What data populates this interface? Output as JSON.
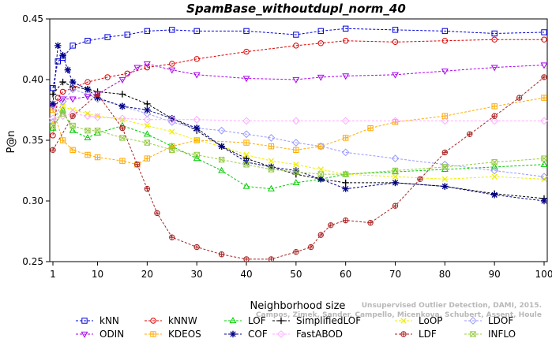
{
  "chart_data": {
    "type": "line",
    "title": "SpamBase_withoutdupl_norm_40",
    "xlabel": "Neighborhood size",
    "ylabel": "P@n",
    "xlim": [
      1,
      100
    ],
    "ylim": [
      0.25,
      0.45
    ],
    "xticks": [
      1,
      10,
      20,
      30,
      40,
      50,
      60,
      70,
      80,
      90,
      100
    ],
    "yticks": [
      0.25,
      0.3,
      0.35,
      0.4,
      0.45
    ],
    "ytick_labels": [
      "0.25",
      "0.30",
      "0.35",
      "0.40",
      "0.45"
    ],
    "grid": false,
    "legend_position": "bottom",
    "watermark_lines": [
      "Unsupervised Outlier Detection, DAMI, 2015.",
      "Campos, Zimek, Sander, Campello, Micenkova, Schubert, Assent, Houle"
    ],
    "series": [
      {
        "name": "kNN",
        "color": "#0000dd",
        "marker": "square",
        "x": [
          1,
          2,
          3,
          5,
          8,
          12,
          16,
          20,
          25,
          30,
          40,
          50,
          55,
          60,
          70,
          80,
          90,
          100
        ],
        "y": [
          0.393,
          0.415,
          0.418,
          0.428,
          0.432,
          0.435,
          0.437,
          0.44,
          0.441,
          0.44,
          0.44,
          0.437,
          0.44,
          0.442,
          0.441,
          0.44,
          0.438,
          0.439
        ]
      },
      {
        "name": "kNNW",
        "color": "#dd0000",
        "marker": "circle",
        "x": [
          1,
          2,
          3,
          5,
          8,
          12,
          16,
          20,
          25,
          30,
          40,
          50,
          55,
          60,
          70,
          80,
          90,
          100
        ],
        "y": [
          0.354,
          0.385,
          0.39,
          0.393,
          0.398,
          0.402,
          0.405,
          0.41,
          0.413,
          0.417,
          0.423,
          0.428,
          0.43,
          0.432,
          0.431,
          0.432,
          0.433,
          0.433
        ]
      },
      {
        "name": "LOF",
        "color": "#00cc00",
        "marker": "triangle-up",
        "x": [
          1,
          3,
          5,
          8,
          10,
          15,
          20,
          25,
          30,
          35,
          40,
          45,
          50,
          55,
          60,
          70,
          80,
          90,
          100
        ],
        "y": [
          0.36,
          0.375,
          0.358,
          0.352,
          0.356,
          0.362,
          0.355,
          0.345,
          0.335,
          0.325,
          0.312,
          0.31,
          0.315,
          0.318,
          0.322,
          0.324,
          0.326,
          0.328,
          0.33
        ]
      },
      {
        "name": "SimplifiedLOF",
        "color": "#000000",
        "marker": "plus",
        "x": [
          1,
          3,
          5,
          8,
          10,
          15,
          20,
          25,
          30,
          35,
          40,
          45,
          50,
          55,
          60,
          70,
          80,
          90,
          100
        ],
        "y": [
          0.388,
          0.398,
          0.394,
          0.392,
          0.39,
          0.388,
          0.38,
          0.368,
          0.358,
          0.345,
          0.335,
          0.328,
          0.322,
          0.318,
          0.315,
          0.315,
          0.312,
          0.306,
          0.302
        ]
      },
      {
        "name": "LoOP",
        "color": "#eeee00",
        "marker": "x",
        "x": [
          1,
          3,
          5,
          8,
          10,
          15,
          20,
          25,
          30,
          35,
          40,
          45,
          50,
          55,
          60,
          70,
          80,
          90,
          100
        ],
        "y": [
          0.365,
          0.378,
          0.375,
          0.372,
          0.37,
          0.367,
          0.362,
          0.357,
          0.35,
          0.345,
          0.338,
          0.333,
          0.33,
          0.326,
          0.322,
          0.32,
          0.318,
          0.32,
          0.318
        ]
      },
      {
        "name": "LDOF",
        "color": "#9999ff",
        "marker": "diamond",
        "x": [
          1,
          3,
          5,
          8,
          10,
          15,
          20,
          25,
          30,
          35,
          40,
          45,
          50,
          55,
          60,
          70,
          80,
          90,
          100
        ],
        "y": [
          0.365,
          0.382,
          0.392,
          0.388,
          0.384,
          0.378,
          0.372,
          0.365,
          0.36,
          0.358,
          0.355,
          0.352,
          0.348,
          0.345,
          0.34,
          0.335,
          0.33,
          0.325,
          0.32
        ]
      },
      {
        "name": "ODIN",
        "color": "#aa00ee",
        "marker": "triangle-down",
        "x": [
          1,
          3,
          5,
          8,
          10,
          15,
          18,
          20,
          25,
          30,
          40,
          50,
          55,
          60,
          70,
          80,
          90,
          100
        ],
        "y": [
          0.378,
          0.384,
          0.384,
          0.386,
          0.388,
          0.4,
          0.41,
          0.413,
          0.408,
          0.404,
          0.401,
          0.4,
          0.402,
          0.403,
          0.404,
          0.407,
          0.41,
          0.412
        ]
      },
      {
        "name": "KDEOS",
        "color": "#ffaa00",
        "marker": "square-cross",
        "x": [
          1,
          3,
          5,
          8,
          10,
          15,
          18,
          20,
          25,
          30,
          40,
          45,
          50,
          55,
          60,
          65,
          70,
          80,
          90,
          100
        ],
        "y": [
          0.375,
          0.35,
          0.342,
          0.338,
          0.336,
          0.333,
          0.33,
          0.335,
          0.345,
          0.35,
          0.348,
          0.345,
          0.342,
          0.345,
          0.352,
          0.36,
          0.365,
          0.37,
          0.378,
          0.385
        ]
      },
      {
        "name": "COF",
        "color": "#000088",
        "marker": "asterisk",
        "x": [
          1,
          2,
          3,
          4,
          5,
          8,
          10,
          15,
          20,
          25,
          30,
          35,
          40,
          45,
          50,
          55,
          60,
          70,
          80,
          90,
          100
        ],
        "y": [
          0.38,
          0.428,
          0.42,
          0.408,
          0.398,
          0.392,
          0.385,
          0.378,
          0.375,
          0.368,
          0.36,
          0.345,
          0.332,
          0.328,
          0.325,
          0.318,
          0.31,
          0.315,
          0.312,
          0.305,
          0.3
        ]
      },
      {
        "name": "FastABOD",
        "color": "#ffaaff",
        "marker": "diamond",
        "x": [
          1,
          3,
          5,
          8,
          10,
          15,
          20,
          25,
          30,
          40,
          50,
          60,
          70,
          80,
          90,
          100
        ],
        "y": [
          0.368,
          0.37,
          0.372,
          0.37,
          0.369,
          0.368,
          0.367,
          0.367,
          0.367,
          0.366,
          0.366,
          0.366,
          0.366,
          0.366,
          0.366,
          0.366
        ]
      },
      {
        "name": "LDF",
        "color": "#aa2222",
        "marker": "circle-plus",
        "x": [
          1,
          5,
          10,
          15,
          18,
          20,
          22,
          25,
          30,
          35,
          40,
          45,
          50,
          53,
          55,
          57,
          60,
          65,
          70,
          75,
          80,
          85,
          90,
          95,
          100
        ],
        "y": [
          0.342,
          0.37,
          0.388,
          0.36,
          0.33,
          0.31,
          0.29,
          0.27,
          0.262,
          0.256,
          0.252,
          0.252,
          0.258,
          0.262,
          0.272,
          0.28,
          0.284,
          0.282,
          0.296,
          0.318,
          0.34,
          0.355,
          0.37,
          0.385,
          0.402
        ]
      },
      {
        "name": "INFLO",
        "color": "#99cc44",
        "marker": "square-x",
        "x": [
          1,
          3,
          5,
          8,
          10,
          15,
          20,
          25,
          30,
          35,
          40,
          45,
          50,
          55,
          60,
          70,
          80,
          90,
          100
        ],
        "y": [
          0.362,
          0.372,
          0.362,
          0.358,
          0.358,
          0.352,
          0.348,
          0.342,
          0.338,
          0.334,
          0.33,
          0.326,
          0.324,
          0.322,
          0.322,
          0.325,
          0.328,
          0.332,
          0.335
        ]
      }
    ]
  },
  "legend_order": [
    [
      "kNN",
      "kNNW",
      "LOF",
      "SimplifiedLOF",
      "LoOP",
      "LDOF"
    ],
    [
      "ODIN",
      "KDEOS",
      "COF",
      "FastABOD",
      "LDF",
      "INFLO"
    ]
  ]
}
